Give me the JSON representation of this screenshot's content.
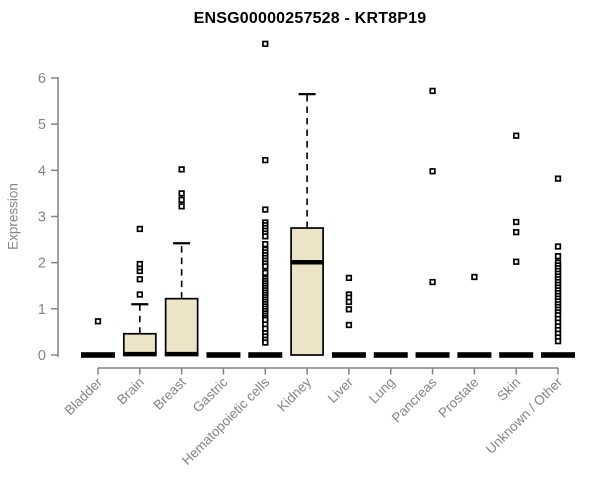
{
  "page": {
    "title": "ENSG00000257528 - KRT8P19"
  },
  "chart_data": {
    "type": "boxplot",
    "title": "ENSG00000257528 - KRT8P19",
    "xlabel": "",
    "ylabel": "Expression",
    "ylim": [
      0,
      6
    ],
    "yticks": [
      0,
      1,
      2,
      3,
      4,
      5,
      6
    ],
    "grid": false,
    "legend": "none",
    "colors": {
      "box_fill": "#ece4c7",
      "box_stroke": "#000000",
      "median": "#000000",
      "axis": "#848484",
      "tick_text": "#858585",
      "title_text": "#000000",
      "outlier_fill": "#ffffff",
      "outlier_stroke": "#000000"
    },
    "categories": [
      "Bladder",
      "Brain",
      "Breast",
      "Gastric",
      "Hematopoietic cells",
      "Kidney",
      "Liver",
      "Lung",
      "Pancreas",
      "Prostate",
      "Skin",
      "Unknown / Other"
    ],
    "series": [
      {
        "name": "Bladder",
        "q1": 0,
        "median": 0,
        "q3": 0,
        "whisker_low": 0,
        "whisker_high": 0,
        "outliers": [
          0.73
        ]
      },
      {
        "name": "Brain",
        "q1": 0,
        "median": 0.02,
        "q3": 0.46,
        "whisker_low": 0,
        "whisker_high": 1.1,
        "outliers": [
          1.31,
          1.64,
          1.82,
          1.9,
          1.97,
          2.73
        ]
      },
      {
        "name": "Breast",
        "q1": 0,
        "median": 0.02,
        "q3": 1.22,
        "whisker_low": 0,
        "whisker_high": 2.42,
        "outliers": [
          3.22,
          3.36,
          3.5,
          4.02
        ]
      },
      {
        "name": "Gastric",
        "q1": 0,
        "median": 0,
        "q3": 0,
        "whisker_low": 0,
        "whisker_high": 0,
        "outliers": []
      },
      {
        "name": "Hematopoietic cells",
        "q1": 0,
        "median": 0,
        "q3": 0,
        "whisker_low": 0,
        "whisker_high": 0,
        "outliers": [
          6.74,
          4.22,
          3.15,
          2.87,
          2.81,
          2.75,
          2.69,
          2.63,
          2.57,
          2.4,
          2.28,
          2.22,
          2.16,
          2.1,
          2.04,
          1.98,
          1.92,
          1.78,
          1.65,
          1.6,
          1.55,
          1.5,
          1.45,
          1.4,
          1.35,
          1.3,
          1.25,
          1.2,
          1.15,
          1.1,
          1.05,
          1.0,
          0.95,
          0.9,
          0.85,
          0.8,
          0.76,
          0.66,
          0.57,
          0.47,
          0.4,
          0.33,
          0.27
        ]
      },
      {
        "name": "Kidney",
        "q1": 0,
        "median": 2.01,
        "q3": 2.75,
        "whisker_low": 0,
        "whisker_high": 5.65,
        "outliers": []
      },
      {
        "name": "Liver",
        "q1": 0,
        "median": 0,
        "q3": 0,
        "whisker_low": 0,
        "whisker_high": 0,
        "outliers": [
          1.67,
          1.31,
          1.24,
          1.15,
          0.99,
          0.65
        ]
      },
      {
        "name": "Lung",
        "q1": 0,
        "median": 0,
        "q3": 0,
        "whisker_low": 0,
        "whisker_high": 0,
        "outliers": []
      },
      {
        "name": "Pancreas",
        "q1": 0,
        "median": 0,
        "q3": 0,
        "whisker_low": 0,
        "whisker_high": 0,
        "outliers": [
          5.72,
          3.98,
          1.58
        ]
      },
      {
        "name": "Prostate",
        "q1": 0,
        "median": 0,
        "q3": 0,
        "whisker_low": 0,
        "whisker_high": 0,
        "outliers": [
          1.69
        ]
      },
      {
        "name": "Skin",
        "q1": 0,
        "median": 0,
        "q3": 0,
        "whisker_low": 0,
        "whisker_high": 0,
        "outliers": [
          4.75,
          2.88,
          2.66,
          2.02
        ]
      },
      {
        "name": "Unknown / Other",
        "q1": 0,
        "median": 0,
        "q3": 0,
        "whisker_low": 0,
        "whisker_high": 0,
        "outliers": [
          3.82,
          2.35,
          2.14,
          2.0,
          1.94,
          1.88,
          1.82,
          1.76,
          1.7,
          1.64,
          1.58,
          1.52,
          1.46,
          1.4,
          1.34,
          1.28,
          1.22,
          1.16,
          1.1,
          1.04,
          0.98,
          0.92,
          0.86,
          0.78,
          0.7,
          0.62,
          0.54,
          0.46,
          0.38,
          0.3
        ]
      }
    ]
  }
}
